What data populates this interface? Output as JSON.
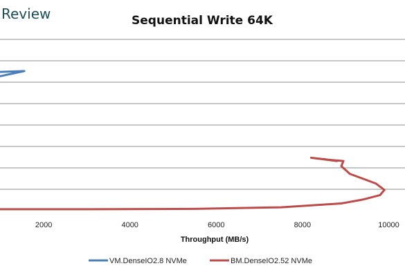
{
  "brand_text": "Review",
  "chart_data": {
    "type": "line",
    "title": "Sequential Write 64K",
    "xlabel": "Throughput (MB/s)",
    "ylabel": "",
    "x_ticks": [
      2000,
      4000,
      6000,
      8000,
      10000
    ],
    "grid": true,
    "legend_position": "bottom",
    "series": [
      {
        "name": "VM.DenseIO2.8 NVMe",
        "color": "#4a7ebb",
        "points": [
          [
            0,
            150
          ],
          [
            280,
            172
          ],
          [
            480,
            195
          ],
          [
            920,
            211
          ],
          [
            1550,
            220
          ],
          [
            700,
            218
          ],
          [
            0,
            200
          ],
          [
            0,
            190
          ]
        ]
      },
      {
        "name": "BM.DenseIO2.52 NVMe",
        "color": "#be4b48",
        "points": [
          [
            560,
            5
          ],
          [
            3000,
            5
          ],
          [
            5500,
            5.5
          ],
          [
            7500,
            8
          ],
          [
            8900,
            14
          ],
          [
            9400,
            20
          ],
          [
            9800,
            27
          ],
          [
            9900,
            35
          ],
          [
            9700,
            45
          ],
          [
            9100,
            60
          ],
          [
            8900,
            72
          ],
          [
            8950,
            80
          ],
          [
            8600,
            82
          ],
          [
            8200,
            85
          ],
          [
            8800,
            80
          ],
          [
            8500,
            83
          ]
        ]
      }
    ]
  }
}
